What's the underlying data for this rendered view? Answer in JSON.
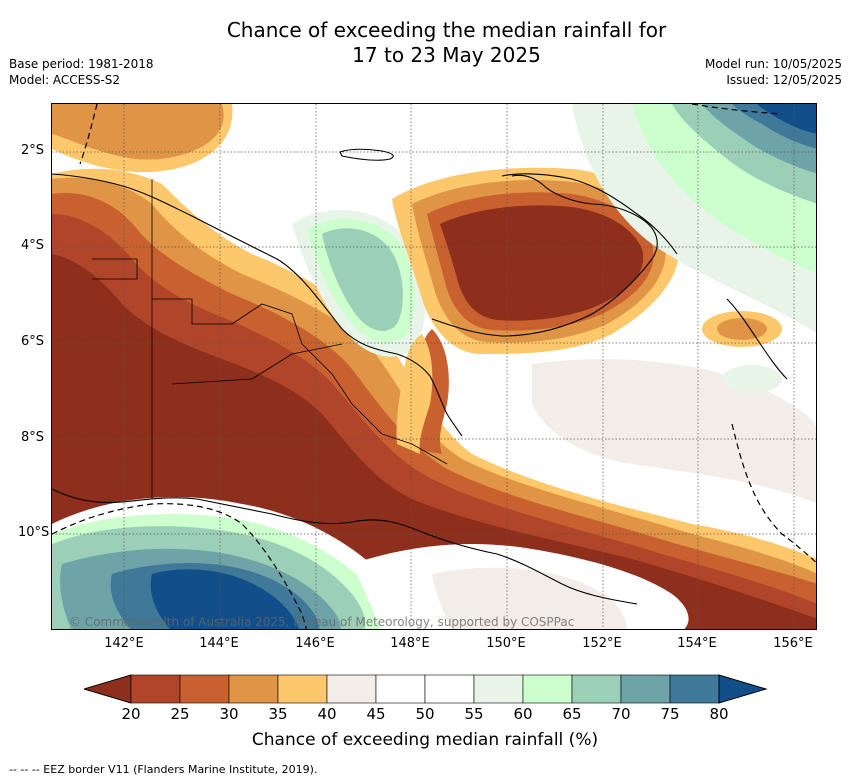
{
  "header": {
    "title_line1": "Chance of exceeding the median rainfall for",
    "title_line2": "17 to 23 May 2025",
    "base_period": "Base period: 1981-2018",
    "model": "Model: ACCESS-S2",
    "model_run": "Model run: 10/05/2025",
    "issued": "Issued: 12/05/2025"
  },
  "map": {
    "lat_labels": [
      "2°S",
      "4°S",
      "6°S",
      "8°S",
      "10°S"
    ],
    "lon_labels": [
      "142°E",
      "144°E",
      "146°E",
      "148°E",
      "150°E",
      "152°E",
      "154°E",
      "156°E"
    ],
    "copyright": "© Commonwealth of Australia 2025, Bureau of Meteorology, supported by COSPPac"
  },
  "colorbar": {
    "title": "Chance of exceeding median rainfall (%)",
    "labels": [
      "20",
      "25",
      "30",
      "35",
      "40",
      "45",
      "50",
      "55",
      "60",
      "65",
      "70",
      "75",
      "80"
    ],
    "colors": [
      "#8e2f1e",
      "#b0452a",
      "#c9602f",
      "#e09445",
      "#fdc86b",
      "#f2ede8",
      "#ffffff",
      "#ffffff",
      "#e9f4e9",
      "#cdfecd",
      "#9ccfb8",
      "#6ea4a8",
      "#3f7898",
      "#124e8a"
    ]
  },
  "footer": {
    "legend": "--  --  -- EEZ border V11 (Flanders Marine Institute, 2019)."
  }
}
